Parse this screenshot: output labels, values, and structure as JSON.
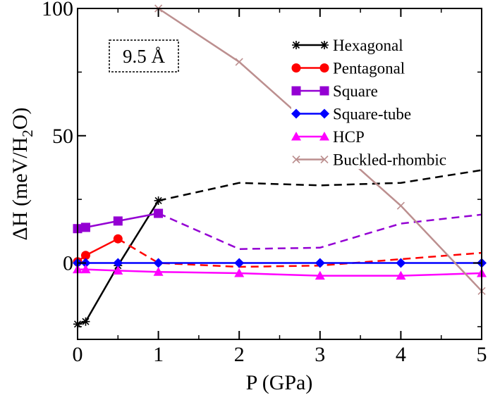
{
  "chart_data": {
    "type": "line",
    "xlabel": "P (GPa)",
    "ylabel": "ΔH (meV/H2O)",
    "ylabel_parts": {
      "main": "ΔH (meV/H",
      "sub": "2",
      "tail": "O)"
    },
    "xlim": [
      0,
      5
    ],
    "ylim": [
      -30,
      100
    ],
    "xticks": [
      0,
      1,
      2,
      3,
      4,
      5
    ],
    "yticks": [
      0,
      50,
      100
    ],
    "grid": false,
    "legend_position": "top-right",
    "annotation": "9.5 Å",
    "series": [
      {
        "name": "Hexagonal",
        "color": "#000000",
        "marker": "star",
        "solid": [
          [
            0,
            -24
          ],
          [
            0.1,
            -23
          ],
          [
            0.5,
            -1
          ],
          [
            1,
            24.5
          ]
        ],
        "dashed": [
          [
            1,
            24.5
          ],
          [
            2,
            31.5
          ],
          [
            3,
            30.5
          ],
          [
            4,
            31.5
          ],
          [
            5,
            36.5
          ]
        ]
      },
      {
        "name": "Pentagonal",
        "color": "#ff0000",
        "marker": "circle",
        "solid": [
          [
            0,
            0.5
          ],
          [
            0.1,
            3
          ],
          [
            0.5,
            9.5
          ]
        ],
        "dashed": [
          [
            0.5,
            9.5
          ],
          [
            1,
            0
          ],
          [
            2,
            -1.5
          ],
          [
            3,
            -1
          ],
          [
            4,
            1.5
          ],
          [
            5,
            4
          ]
        ]
      },
      {
        "name": "Square",
        "color": "#9400d3",
        "marker": "square",
        "solid": [
          [
            0,
            13.5
          ],
          [
            0.1,
            14
          ],
          [
            0.5,
            16.5
          ],
          [
            1,
            19.5
          ]
        ],
        "dashed": [
          [
            1,
            19.5
          ],
          [
            2,
            5.5
          ],
          [
            3,
            6
          ],
          [
            4,
            15.5
          ],
          [
            5,
            19
          ]
        ]
      },
      {
        "name": "Square-tube",
        "color": "#0000ff",
        "marker": "diamond",
        "solid": [
          [
            0,
            0
          ],
          [
            0.1,
            0
          ],
          [
            0.5,
            0
          ],
          [
            1,
            0
          ],
          [
            2,
            0
          ],
          [
            3,
            0
          ],
          [
            4,
            0
          ],
          [
            5,
            0
          ]
        ],
        "dashed": []
      },
      {
        "name": "HCP",
        "color": "#ff00ff",
        "marker": "triangle",
        "solid": [
          [
            0,
            -2.5
          ],
          [
            0.1,
            -2.5
          ],
          [
            0.5,
            -3
          ],
          [
            1,
            -3.5
          ],
          [
            2,
            -4
          ],
          [
            3,
            -5
          ],
          [
            4,
            -5
          ],
          [
            5,
            -4
          ]
        ],
        "dashed": []
      },
      {
        "name": "Buckled-rhombic",
        "color": "#bc8f8f",
        "marker": "x",
        "solid": [
          [
            1,
            100
          ],
          [
            2,
            79
          ],
          [
            4,
            22.5
          ],
          [
            5,
            -11
          ]
        ],
        "dashed": []
      }
    ]
  }
}
